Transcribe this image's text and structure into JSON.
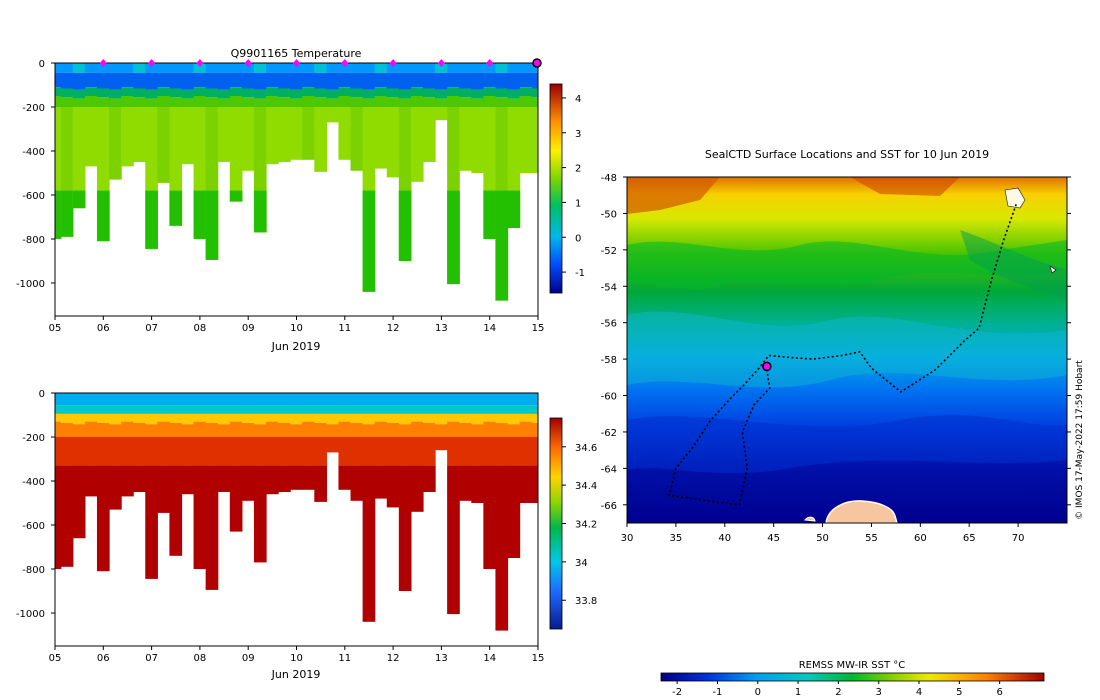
{
  "chart_data": [
    {
      "type": "heatmap",
      "title": "Q9901165  Temperature",
      "xlabel": "Jun 2019",
      "ylabel": "",
      "x_ticks": [
        "05",
        "06",
        "07",
        "08",
        "09",
        "10",
        "11",
        "12",
        "13",
        "14",
        "15"
      ],
      "x_range": [
        5,
        15
      ],
      "y_ticks": [
        0,
        -200,
        -400,
        -600,
        -800,
        -1000
      ],
      "y_range": [
        -1150,
        0
      ],
      "colorbar_ticks": [
        4,
        3,
        2,
        1,
        0,
        -1
      ],
      "colorbar_range": [
        -1.6,
        4.4
      ],
      "surface_markers_days": [
        6,
        7,
        8,
        9,
        10,
        11,
        12,
        13,
        14
      ],
      "highlight_day": 15,
      "profiles": [
        {
          "day": 5.0,
          "depth": -800
        },
        {
          "day": 5.25,
          "depth": -790
        },
        {
          "day": 5.5,
          "depth": -660
        },
        {
          "day": 5.75,
          "depth": -470
        },
        {
          "day": 6.0,
          "depth": -810
        },
        {
          "day": 6.25,
          "depth": -530
        },
        {
          "day": 6.5,
          "depth": -470
        },
        {
          "day": 6.75,
          "depth": -450
        },
        {
          "day": 7.0,
          "depth": -845
        },
        {
          "day": 7.25,
          "depth": -545
        },
        {
          "day": 7.5,
          "depth": -740
        },
        {
          "day": 7.75,
          "depth": -460
        },
        {
          "day": 8.0,
          "depth": -800
        },
        {
          "day": 8.25,
          "depth": -895
        },
        {
          "day": 8.5,
          "depth": -450
        },
        {
          "day": 8.75,
          "depth": -630
        },
        {
          "day": 9.0,
          "depth": -490
        },
        {
          "day": 9.25,
          "depth": -770
        },
        {
          "day": 9.5,
          "depth": -460
        },
        {
          "day": 9.75,
          "depth": -450
        },
        {
          "day": 10.0,
          "depth": -440
        },
        {
          "day": 10.25,
          "depth": -440
        },
        {
          "day": 10.5,
          "depth": -495
        },
        {
          "day": 10.75,
          "depth": -270
        },
        {
          "day": 11.0,
          "depth": -440
        },
        {
          "day": 11.25,
          "depth": -490
        },
        {
          "day": 11.5,
          "depth": -1040
        },
        {
          "day": 11.75,
          "depth": -480
        },
        {
          "day": 12.0,
          "depth": -520
        },
        {
          "day": 12.25,
          "depth": -900
        },
        {
          "day": 12.5,
          "depth": -540
        },
        {
          "day": 12.75,
          "depth": -450
        },
        {
          "day": 13.0,
          "depth": -260
        },
        {
          "day": 13.25,
          "depth": -1005
        },
        {
          "day": 13.5,
          "depth": -490
        },
        {
          "day": 13.75,
          "depth": -500
        },
        {
          "day": 14.0,
          "depth": -800
        },
        {
          "day": 14.25,
          "depth": -1080
        },
        {
          "day": 14.5,
          "depth": -750
        },
        {
          "day": 14.75,
          "depth": -500
        },
        {
          "day": 15.0,
          "depth": -500
        }
      ]
    },
    {
      "type": "heatmap",
      "title": "",
      "xlabel": "Jun 2019",
      "ylabel": "",
      "x_ticks": [
        "05",
        "06",
        "07",
        "08",
        "09",
        "10",
        "11",
        "12",
        "13",
        "14",
        "15"
      ],
      "x_range": [
        5,
        15
      ],
      "y_ticks": [
        0,
        -200,
        -400,
        -600,
        -800,
        -1000
      ],
      "y_range": [
        -1150,
        0
      ],
      "colorbar_ticks": [
        34.6,
        34.4,
        34.2,
        34,
        33.8
      ],
      "colorbar_range": [
        33.65,
        34.75
      ]
    },
    {
      "type": "heatmap",
      "title": "SealCTD Surface Locations and SST for 10 Jun 2019",
      "xlabel": "",
      "ylabel": "",
      "x_ticks": [
        "30",
        "35",
        "40",
        "45",
        "50",
        "55",
        "60",
        "65",
        "70"
      ],
      "x_range": [
        30,
        75
      ],
      "y_ticks": [
        "-48",
        "-50",
        "-52",
        "-54",
        "-56",
        "-58",
        "-60",
        "-62",
        "-64",
        "-66"
      ],
      "y_range": [
        -67,
        -48
      ],
      "current_position": [
        44.3,
        -58.4
      ],
      "track": [
        [
          69.8,
          -49.5
        ],
        [
          68.5,
          -51.5
        ],
        [
          67.2,
          -53.8
        ],
        [
          66.0,
          -56.3
        ],
        [
          64.5,
          -57.0
        ],
        [
          61.5,
          -58.6
        ],
        [
          58.0,
          -59.8
        ],
        [
          55.0,
          -58.5
        ],
        [
          53.8,
          -57.6
        ],
        [
          52.0,
          -57.8
        ],
        [
          49.0,
          -58.0
        ],
        [
          46.5,
          -57.9
        ],
        [
          44.5,
          -57.8
        ],
        [
          43.5,
          -58.5
        ],
        [
          42.0,
          -59.4
        ],
        [
          40.5,
          -60.2
        ],
        [
          38.5,
          -61.4
        ],
        [
          36.8,
          -62.8
        ],
        [
          35.0,
          -64.0
        ],
        [
          34.3,
          -65.5
        ],
        [
          36.0,
          -65.6
        ],
        [
          38.5,
          -65.8
        ],
        [
          41.5,
          -66.0
        ],
        [
          42.3,
          -64.0
        ],
        [
          41.8,
          -62.0
        ],
        [
          43.0,
          -60.5
        ],
        [
          44.6,
          -59.6
        ],
        [
          44.3,
          -58.6
        ]
      ],
      "colorbar_title": "REMSS MW-IR SST °C",
      "colorbar_ticks": [
        "-2",
        "-1",
        "0",
        "1",
        "2",
        "3",
        "4",
        "5",
        "6"
      ],
      "colorbar_range": [
        -2.4,
        7.1
      ],
      "credit": "© IMOS 17-May-2022 17:59 Hobart"
    }
  ]
}
